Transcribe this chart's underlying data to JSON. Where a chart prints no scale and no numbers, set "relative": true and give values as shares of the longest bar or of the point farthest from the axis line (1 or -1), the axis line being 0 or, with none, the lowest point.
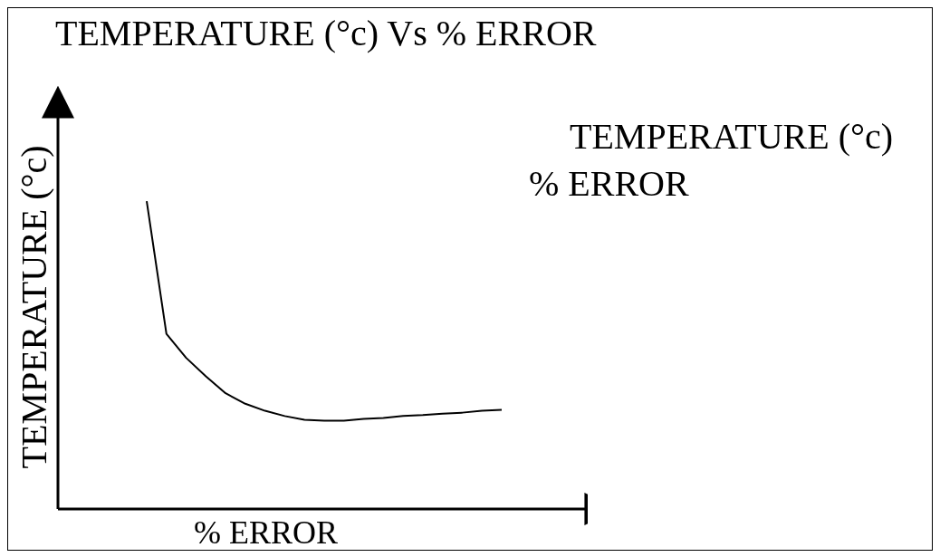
{
  "chart_data": {
    "type": "line",
    "title": "TEMPERATURE (°c) Vs % ERROR",
    "xlabel": "% ERROR",
    "ylabel": "TEMPERATURE (°c)",
    "annotations": [
      "TEMPERATURE (°c)",
      "% ERROR"
    ],
    "relative": true,
    "marker": "none",
    "line_style": "solid",
    "categories": [
      null,
      null,
      null,
      null,
      null,
      null,
      null,
      null,
      null,
      null,
      null,
      null,
      null,
      null,
      null,
      null,
      null,
      null,
      null
    ],
    "series": [
      {
        "color": "#000000",
        "values": [
          1,
          0.569,
          0.491,
          0.431,
          0.376,
          0.342,
          0.319,
          0.302,
          0.29,
          0.287,
          0.287,
          0.293,
          0.296,
          0.302,
          0.305,
          0.31,
          0.313,
          0.319,
          0.322
        ]
      }
    ]
  }
}
